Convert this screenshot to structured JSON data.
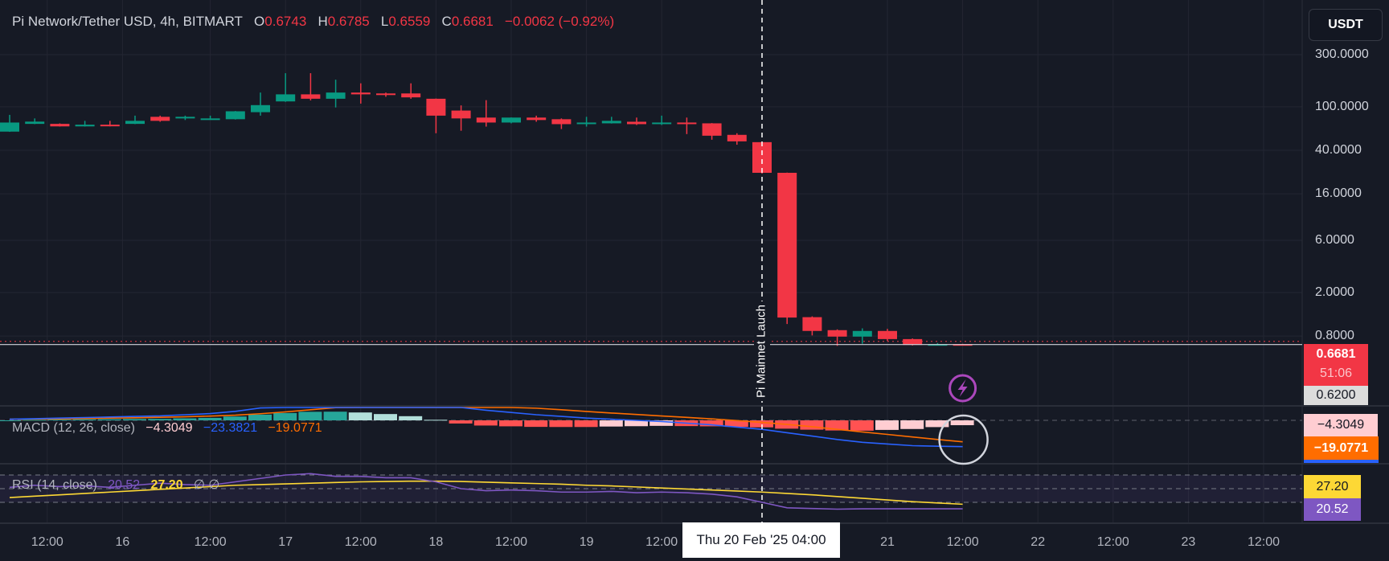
{
  "header": {
    "symbol": "Pi Network/Tether USD, 4h, BITMART",
    "o_label": "O",
    "o_value": "0.6743",
    "h_label": "H",
    "h_value": "0.6785",
    "l_label": "L",
    "l_value": "0.6559",
    "c_label": "C",
    "c_value": "0.6681",
    "change": "−0.0062 (−0.92%)"
  },
  "currency_button": "USDT",
  "price_tags": {
    "last_price": "0.6681",
    "countdown": "51:06",
    "crosshair_price": "0.6200",
    "macd_hist": "−4.3049",
    "macd_signal": "−19.0771",
    "rsi_ma": "27.20",
    "rsi": "20.52"
  },
  "annotation": {
    "event_label": "Pi Mainnet Lauch"
  },
  "crosshair_time": "Thu 20 Feb '25   04:00",
  "colors": {
    "up": "#089981",
    "down": "#f23645",
    "macd": "#2962ff",
    "signal": "#ff6d00",
    "rsi": "#7e57c2",
    "rsi_ma": "#fdd835",
    "background": "#161a25"
  },
  "macd_legend": {
    "label": "MACD (12, 26, close)",
    "hist": "−4.3049",
    "macd": "−23.3821",
    "signal": "−19.0771"
  },
  "rsi_legend": {
    "label": "RSI (14, close)",
    "rsi": "20.52",
    "ma": "27.20",
    "extra": "∅  ∅"
  },
  "chart_data": {
    "type": "candlestick",
    "title": "Pi Network/Tether USD, 4h, BITMART",
    "y_scale": "log",
    "y_ticks": [
      "300.0000",
      "100.0000",
      "40.0000",
      "16.0000",
      "6.0000",
      "2.0000",
      "0.8000"
    ],
    "y_tick_values": [
      300,
      100,
      40,
      16,
      6,
      2,
      0.8
    ],
    "x_ticks": [
      "12:00",
      "16",
      "12:00",
      "17",
      "12:00",
      "18",
      "12:00",
      "19",
      "12:00",
      "21",
      "12:00",
      "22",
      "12:00",
      "23",
      "12:00"
    ],
    "x_tick_candle_index": [
      1.5,
      4.5,
      8,
      11,
      14,
      17,
      20,
      23,
      26,
      35,
      38,
      41,
      44,
      47,
      50
    ],
    "event_candle_index": 30,
    "candles_ohlc": [
      [
        59.3,
        84.4,
        59,
        71.8
      ],
      [
        69.8,
        78.3,
        69.5,
        73.2
      ],
      [
        69.8,
        70.5,
        66,
        66.2
      ],
      [
        66.2,
        74.4,
        66,
        68.6
      ],
      [
        68.6,
        74.4,
        66.2,
        67.4
      ],
      [
        69.8,
        83,
        69.5,
        74.4
      ],
      [
        81,
        83,
        73,
        74.4
      ],
      [
        79.7,
        83,
        75.7,
        81
      ],
      [
        77,
        83,
        76.5,
        78.3
      ],
      [
        77,
        91.5,
        76.5,
        91
      ],
      [
        89.3,
        135,
        83,
        103.6
      ],
      [
        112,
        203,
        111,
        130
      ],
      [
        130,
        203,
        114.5,
        118.5
      ],
      [
        118.5,
        177,
        98.6,
        135
      ],
      [
        135,
        164,
        107,
        130
      ],
      [
        132.5,
        135,
        123.5,
        130
      ],
      [
        132.5,
        164,
        118.5,
        122
      ],
      [
        118.5,
        119,
        57.3,
        83
      ],
      [
        92.4,
        103,
        60.4,
        78.3
      ],
      [
        79.7,
        115,
        65.9,
        71.8
      ],
      [
        71.8,
        79.9,
        70.6,
        79.7
      ],
      [
        79.7,
        83,
        73,
        75.7
      ],
      [
        77,
        78.3,
        62.6,
        69.4
      ],
      [
        69.4,
        81,
        65.9,
        71.8
      ],
      [
        70.6,
        81,
        70.3,
        74.4
      ],
      [
        73,
        79.7,
        68.2,
        69.4
      ],
      [
        70.6,
        83,
        68.2,
        71.8
      ],
      [
        71.8,
        79.7,
        56.3,
        69.4
      ],
      [
        70.6,
        71,
        50,
        54.4
      ],
      [
        55.4,
        57.3,
        45,
        48.3
      ],
      [
        47.5,
        48,
        24.5,
        24.9
      ],
      [
        24.9,
        25,
        1.03,
        1.18
      ],
      [
        1.19,
        1.21,
        0.81,
        0.89
      ],
      [
        0.905,
        0.92,
        0.65,
        0.79
      ],
      [
        0.79,
        0.94,
        0.68,
        0.89
      ],
      [
        0.89,
        0.93,
        0.72,
        0.75
      ],
      [
        0.75,
        0.76,
        0.655,
        0.663
      ],
      [
        0.662,
        0.69,
        0.655,
        0.6743
      ],
      [
        0.6743,
        0.6785,
        0.6559,
        0.6681
      ]
    ],
    "last_price": 0.6681,
    "macd": {
      "params": "12, 26, close",
      "macd_line": [
        1,
        1.5,
        2,
        2.5,
        3,
        3.5,
        4,
        5,
        6,
        8,
        11,
        14,
        17,
        19,
        20,
        20,
        19,
        16,
        12,
        9,
        7,
        5,
        3.5,
        2,
        1,
        0,
        -1,
        -2.5,
        -4,
        -6,
        -8,
        -11,
        -14,
        -17,
        -19.5,
        -21,
        -22.5,
        -23,
        -23.3821
      ],
      "signal_line": [
        1,
        1.1,
        1.3,
        1.6,
        2,
        2.3,
        2.7,
        3.2,
        3.8,
        4.6,
        5.9,
        7.5,
        9.4,
        11.3,
        13,
        14.4,
        15.3,
        15.5,
        14.8,
        13.6,
        12.3,
        10.8,
        9.4,
        7.9,
        6.5,
        5.2,
        3.9,
        2.6,
        1.3,
        -0.2,
        -1.8,
        -3.6,
        -5.7,
        -8,
        -10.3,
        -12.5,
        -14.8,
        -17,
        -19.0771
      ]
    },
    "rsi": {
      "params": "14, close",
      "bands": [
        70,
        50,
        30
      ],
      "rsi_line": [
        52,
        55,
        53,
        54,
        52,
        55,
        58,
        56,
        55,
        60,
        65,
        70,
        72,
        68,
        68,
        66,
        66,
        60,
        50,
        47,
        48,
        47,
        45,
        45,
        46,
        44,
        45,
        44,
        42,
        38,
        30,
        22,
        21,
        20,
        20.5,
        20.5,
        20.5,
        20.5,
        20.52
      ],
      "ma_line": [
        37,
        39,
        41,
        43,
        45,
        47,
        49,
        51,
        53,
        55,
        56,
        57,
        58,
        59,
        60,
        60.5,
        61,
        61,
        60.5,
        59.5,
        58.5,
        57.5,
        56.5,
        55,
        54,
        52.5,
        51,
        49.5,
        48,
        46.5,
        45,
        43,
        41,
        38.5,
        36,
        33.5,
        31,
        29,
        27.2
      ]
    }
  }
}
